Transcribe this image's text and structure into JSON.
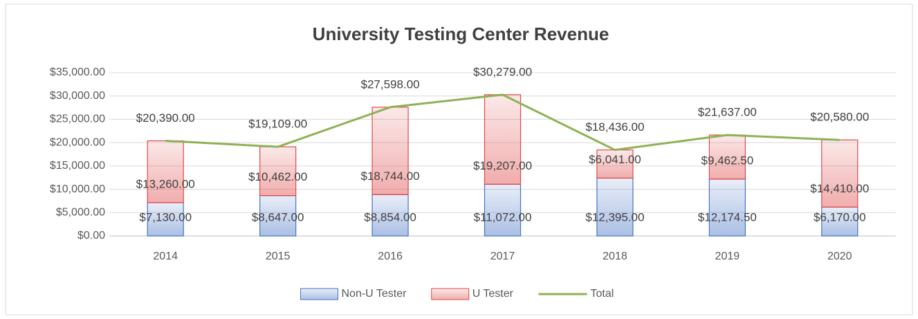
{
  "chart_data": {
    "type": "bar",
    "stacked": true,
    "title": "University Testing Center Revenue",
    "categories": [
      "2014",
      "2015",
      "2016",
      "2017",
      "2018",
      "2019",
      "2020"
    ],
    "series": [
      {
        "name": "Non-U Tester",
        "type": "bar",
        "color": "#4472c4",
        "values": [
          7130,
          8647,
          8854,
          11072,
          12395,
          12174.5,
          6170
        ],
        "value_labels": [
          "$7,130.00",
          "$8,647.00",
          "$8,854.00",
          "$11,072.00",
          "$12,395.00",
          "$12,174.50",
          "$6,170.00"
        ]
      },
      {
        "name": "U Tester",
        "type": "bar",
        "color": "#e04848",
        "values": [
          13260,
          10462,
          18744,
          19207,
          6041,
          9462.5,
          14410
        ],
        "value_labels": [
          "$13,260.00",
          "$10,462.00",
          "$18,744.00",
          "$19,207.00",
          "$6,041.00",
          "$9,462.50",
          "$14,410.00"
        ]
      },
      {
        "name": "Total",
        "type": "line",
        "color": "#8db255",
        "values": [
          20390,
          19109,
          27598,
          30279,
          18436,
          21637,
          20580
        ],
        "value_labels": [
          "$20,390.00",
          "$19,109.00",
          "$27,598.00",
          "$30,279.00",
          "$18,436.00",
          "$21,637.00",
          "$20,580.00"
        ]
      }
    ],
    "ylim": [
      0,
      35000
    ],
    "yticks": [
      {
        "value": 0,
        "label": "$0.00"
      },
      {
        "value": 5000,
        "label": "$5,000.00"
      },
      {
        "value": 10000,
        "label": "$10,000.00"
      },
      {
        "value": 15000,
        "label": "$15,000.00"
      },
      {
        "value": 20000,
        "label": "$20,000.00"
      },
      {
        "value": 25000,
        "label": "$25,000.00"
      },
      {
        "value": 30000,
        "label": "$30,000.00"
      },
      {
        "value": 35000,
        "label": "$35,000.00"
      }
    ],
    "grid": true,
    "legend": "bottom"
  }
}
